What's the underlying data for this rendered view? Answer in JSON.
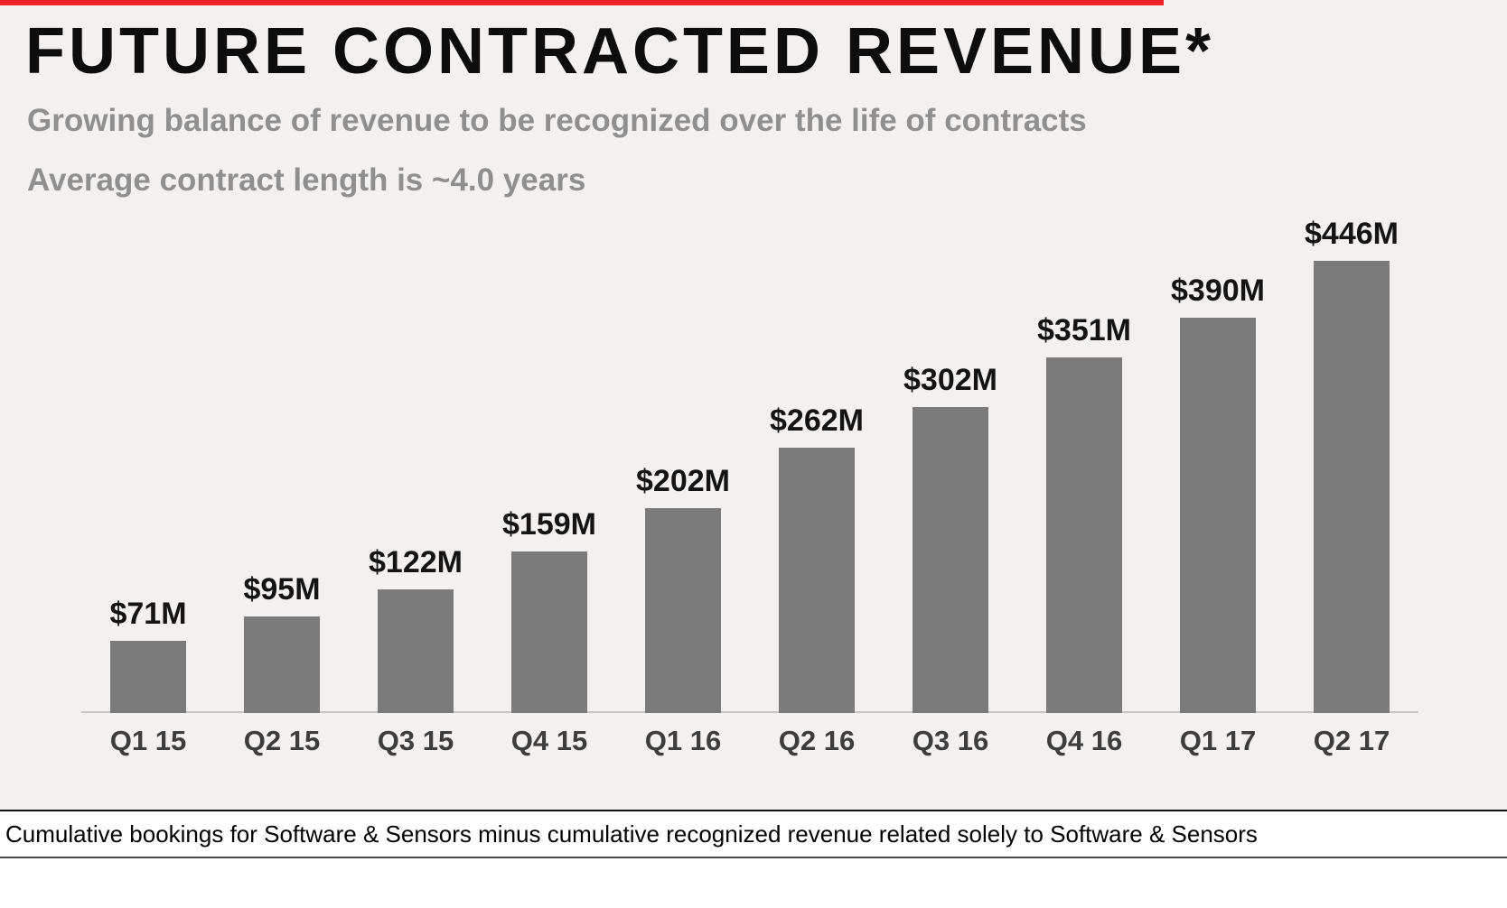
{
  "top_bar": {
    "color": "#ed2024"
  },
  "title": "FUTURE CONTRACTED REVENUE*",
  "subtitles": [
    "Growing balance of revenue to be recognized over the life of contracts",
    "Average contract length is ~4.0 years"
  ],
  "footnote": "Cumulative bookings for Software & Sensors minus cumulative recognized revenue related solely to Software & Sensors",
  "chart_data": {
    "type": "bar",
    "title": "FUTURE CONTRACTED REVENUE*",
    "subtitle": "Growing balance of revenue to be recognized over the life of contracts; Average contract length is ~4.0 years",
    "categories": [
      "Q1 15",
      "Q2 15",
      "Q3 15",
      "Q4 15",
      "Q1 16",
      "Q2 16",
      "Q3 16",
      "Q4 16",
      "Q1 17",
      "Q2 17"
    ],
    "values": [
      71,
      95,
      122,
      159,
      202,
      262,
      302,
      351,
      390,
      446
    ],
    "value_labels": [
      "$71M",
      "$95M",
      "$122M",
      "$159M",
      "$202M",
      "$262M",
      "$302M",
      "$351M",
      "$390M",
      "$446M"
    ],
    "unit": "USD millions",
    "xlabel": "",
    "ylabel": "",
    "ylim": [
      0,
      460
    ],
    "bar_color": "#7b7b7b",
    "grid": false,
    "legend": false
  }
}
